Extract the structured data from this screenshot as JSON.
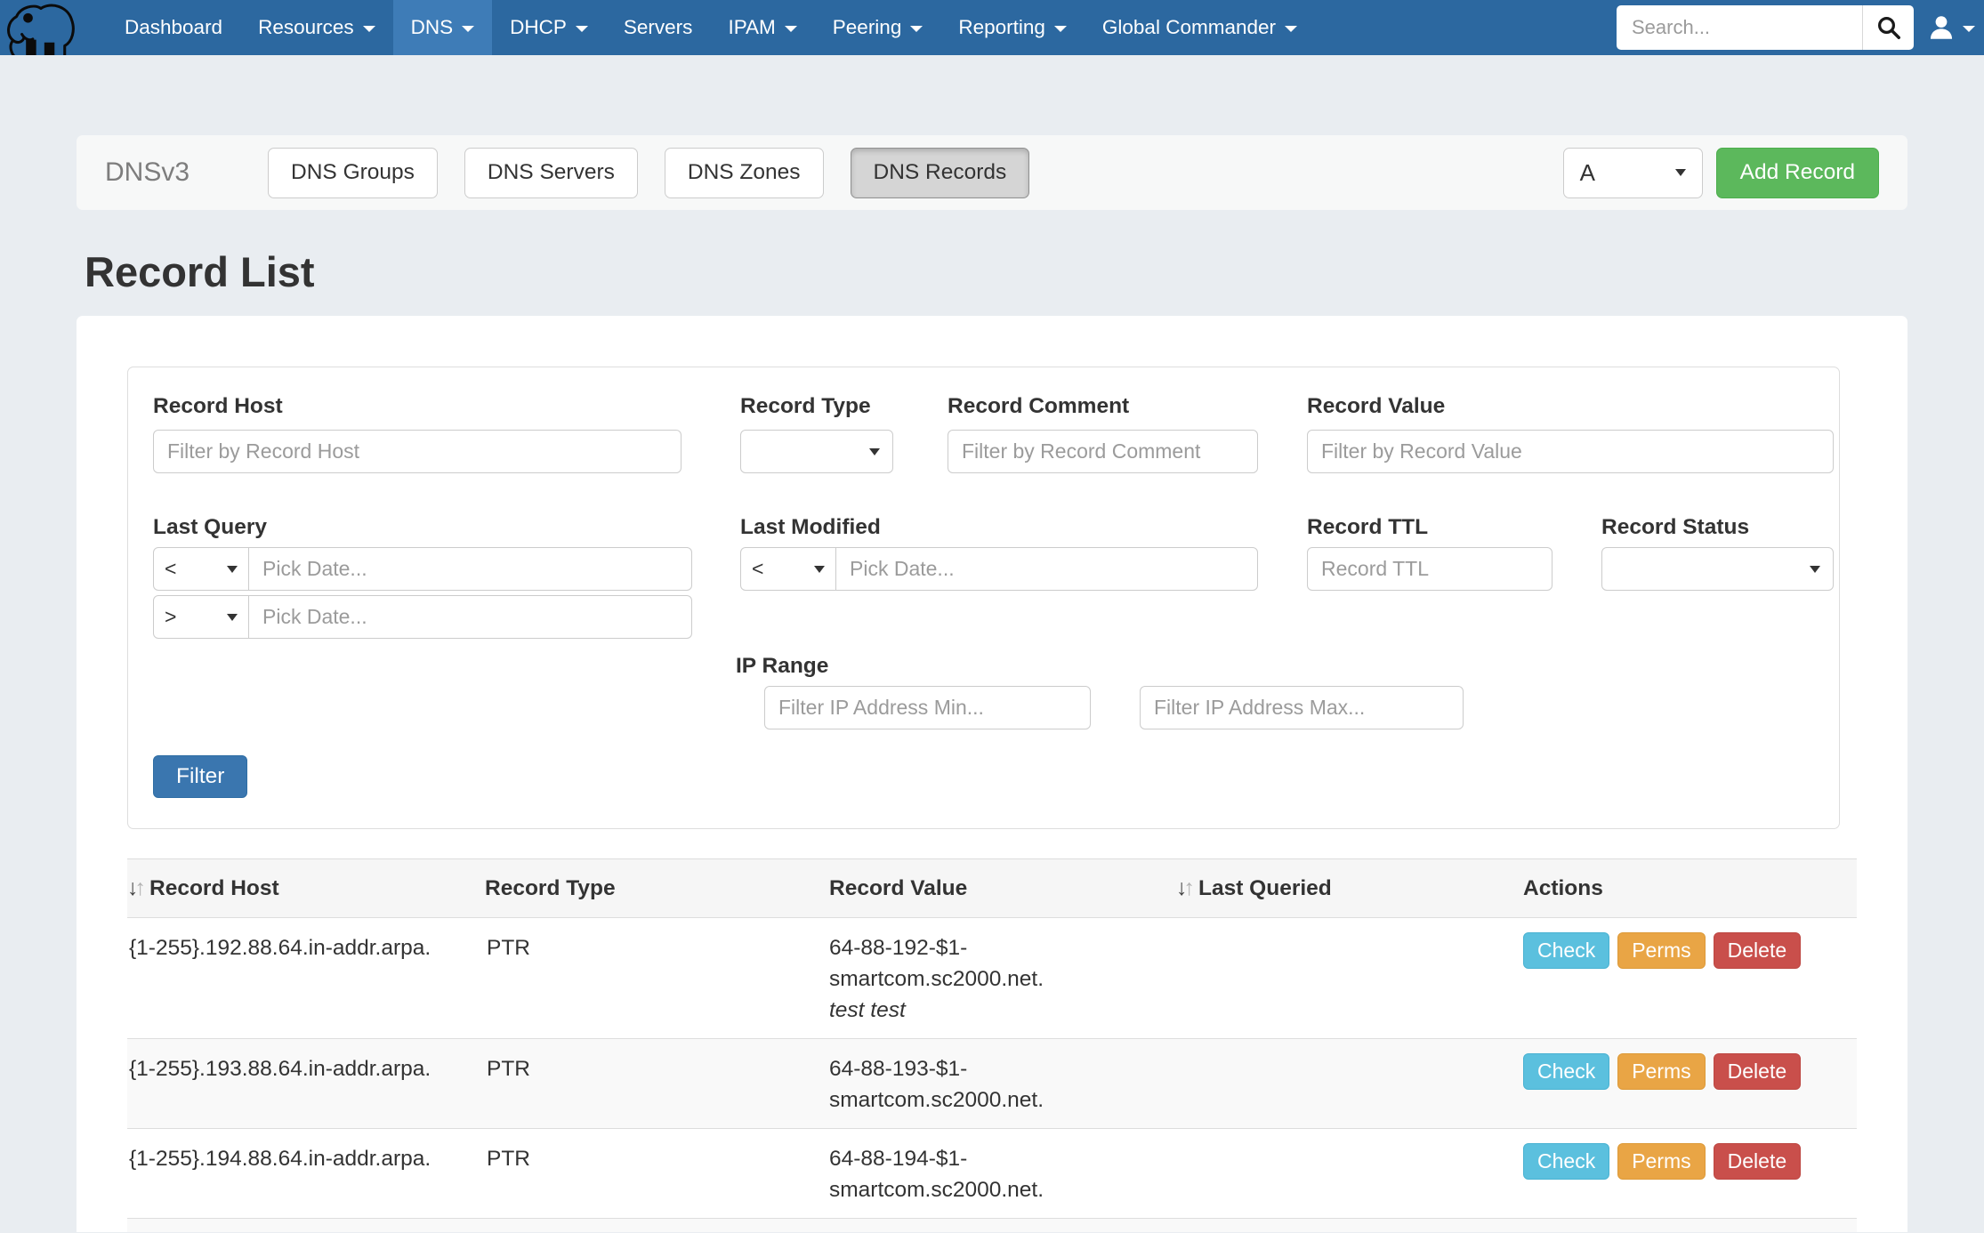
{
  "colors": {
    "navbar_bg": "#2c68a0",
    "navbar_active_bg": "#3e7cb7",
    "page_bg": "#e9edf1",
    "add_record_green": "#5cb85c",
    "filter_blue": "#3a76af",
    "check_blue": "#5bc0de",
    "perms_orange": "#e9a545",
    "delete_red": "#c94f4b"
  },
  "navbar": {
    "logo_icon": "mammoth-logo",
    "items": [
      {
        "label": "Dashboard",
        "caret": false,
        "active": false
      },
      {
        "label": "Resources",
        "caret": true,
        "active": false
      },
      {
        "label": "DNS",
        "caret": true,
        "active": true
      },
      {
        "label": "DHCP",
        "caret": true,
        "active": false
      },
      {
        "label": "Servers",
        "caret": false,
        "active": false
      },
      {
        "label": "IPAM",
        "caret": true,
        "active": false
      },
      {
        "label": "Peering",
        "caret": true,
        "active": false
      },
      {
        "label": "Reporting",
        "caret": true,
        "active": false
      },
      {
        "label": "Global Commander",
        "caret": true,
        "active": false
      }
    ],
    "search": {
      "placeholder": "Search...",
      "button_icon": "magnifier-icon"
    },
    "user_icon": "user-icon"
  },
  "subheader": {
    "title": "DNSv3",
    "tabs": [
      {
        "label": "DNS Groups",
        "active": false
      },
      {
        "label": "DNS Servers",
        "active": false
      },
      {
        "label": "DNS Zones",
        "active": false
      },
      {
        "label": "DNS Records",
        "active": true
      }
    ],
    "record_type_selected": "A",
    "add_record_label": "Add Record"
  },
  "page": {
    "heading": "Record List"
  },
  "filters": {
    "record_host": {
      "label": "Record Host",
      "placeholder": "Filter by Record Host",
      "value": ""
    },
    "record_type": {
      "label": "Record Type",
      "value": ""
    },
    "record_comment": {
      "label": "Record Comment",
      "placeholder": "Filter by Record Comment",
      "value": ""
    },
    "record_value": {
      "label": "Record Value",
      "placeholder": "Filter by Record Value",
      "value": ""
    },
    "last_query": {
      "label": "Last Query",
      "lt": "<",
      "gt": ">",
      "date_placeholder": "Pick Date...",
      "lt_value": "",
      "gt_value": ""
    },
    "last_modified": {
      "label": "Last Modified",
      "lt": "<",
      "date_placeholder": "Pick Date...",
      "value": ""
    },
    "record_ttl": {
      "label": "Record TTL",
      "placeholder": "Record TTL",
      "value": ""
    },
    "record_status": {
      "label": "Record Status",
      "value": ""
    },
    "ip_range": {
      "label": "IP Range",
      "min_placeholder": "Filter IP Address Min...",
      "max_placeholder": "Filter IP Address Max...",
      "min_value": "",
      "max_value": ""
    },
    "submit_label": "Filter"
  },
  "table": {
    "columns": [
      {
        "label": "Record Host",
        "sortable": true
      },
      {
        "label": "Record Type",
        "sortable": false
      },
      {
        "label": "Record Value",
        "sortable": false
      },
      {
        "label": "Last Queried",
        "sortable": true
      },
      {
        "label": "Actions",
        "sortable": false
      }
    ],
    "action_labels": {
      "check": "Check",
      "perms": "Perms",
      "delete": "Delete"
    },
    "rows": [
      {
        "host": "{1-255}.192.88.64.in-addr.arpa.",
        "type": "PTR",
        "value": "64-88-192-$1-smartcom.sc2000.net.",
        "comment": "test test",
        "last_queried": ""
      },
      {
        "host": "{1-255}.193.88.64.in-addr.arpa.",
        "type": "PTR",
        "value": "64-88-193-$1-smartcom.sc2000.net.",
        "comment": "",
        "last_queried": ""
      },
      {
        "host": "{1-255}.194.88.64.in-addr.arpa.",
        "type": "PTR",
        "value": "64-88-194-$1-smartcom.sc2000.net.",
        "comment": "",
        "last_queried": ""
      }
    ]
  }
}
